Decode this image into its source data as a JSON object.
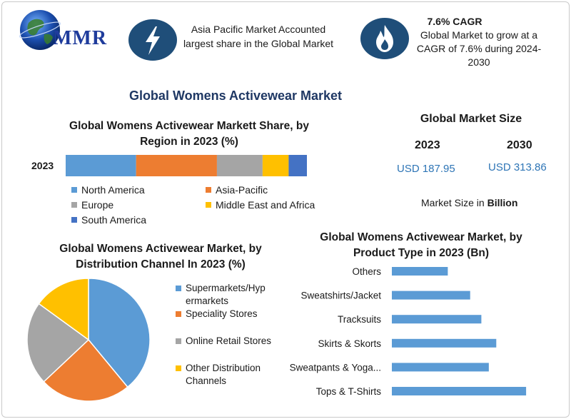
{
  "logo": {
    "text": "MMR"
  },
  "header": {
    "fact1": "Asia Pacific Market Accounted largest share in the Global Market",
    "fact2_title": "7.6% CAGR",
    "fact2_text": "Global Market to grow at a CAGR of 7.6% during 2024-2030",
    "fact1_icon": "lightning-icon",
    "fact2_icon": "flame-icon"
  },
  "main_title": "Global Womens Activewear Market",
  "market_size": {
    "title": "Global Market Size",
    "year1": "2023",
    "year2": "2030",
    "value1": "USD 187.95",
    "value2": "USD 313.86",
    "unit_prefix": "Market Size in",
    "unit": "Billion"
  },
  "colors": {
    "blue": "#5b9bd5",
    "orange": "#ed7d31",
    "gray": "#a5a5a5",
    "yellow": "#ffc000",
    "darkblue": "#4472c4",
    "navy": "#1f3864",
    "icon_bg": "#1f4e79"
  },
  "chart_data": [
    {
      "type": "bar",
      "orientation": "horizontal-stacked",
      "title": "Global Womens Activewear Markett Share, by Region in 2023 (%)",
      "categories": [
        "2023"
      ],
      "series": [
        {
          "name": "North America",
          "values": [
            27
          ]
        },
        {
          "name": "Asia-Pacific",
          "values": [
            31
          ]
        },
        {
          "name": "Europe",
          "values": [
            17.5
          ]
        },
        {
          "name": "Middle East and Africa",
          "values": [
            10
          ]
        },
        {
          "name": "South America",
          "values": [
            7
          ]
        }
      ],
      "legend": "bottom"
    },
    {
      "type": "pie",
      "title": "Global Womens Activewear Market, by Distribution Channel  In 2023 (%)",
      "labels": [
        "Supermarkets/Hypermarkets",
        "Speciality Stores",
        "Online Retail Stores",
        "Other Distribution Channels"
      ],
      "legend_labels": [
        "Supermarkets/Hyp ermarkets",
        "Speciality Stores",
        "Online Retail Stores",
        "Other Distribution Channels"
      ],
      "values": [
        39,
        24,
        22,
        15
      ],
      "legend": "right"
    },
    {
      "type": "bar",
      "orientation": "horizontal",
      "title": "Global Womens Activewear Market, by Product Type in 2023 (Bn)",
      "categories": [
        "Others",
        "Sweatshirts/Jacket",
        "Tracksuits",
        "Skirts & Skorts",
        "Sweatpants & Yoga...",
        "Tops & T-Shirts"
      ],
      "values": [
        15,
        21,
        24,
        28,
        26,
        36
      ],
      "xlim": [
        0,
        40
      ],
      "grid": false
    }
  ]
}
